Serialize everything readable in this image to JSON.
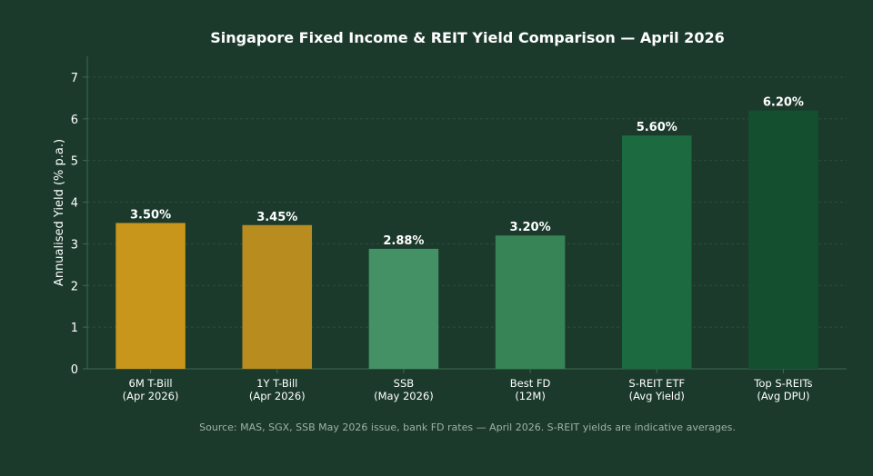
{
  "chart_data": {
    "type": "bar",
    "title": "Singapore Fixed Income & REIT Yield Comparison — April 2026",
    "xlabel": "",
    "ylabel": "Annualised Yield (% p.a.)",
    "ylim": [
      0,
      7.5
    ],
    "yticks": [
      "0",
      "1",
      "2",
      "3",
      "4",
      "5",
      "6",
      "7"
    ],
    "grid": true,
    "categories": [
      [
        "6M T-Bill",
        "(Apr 2026)"
      ],
      [
        "1Y T-Bill",
        "(Apr 2026)"
      ],
      [
        "SSB",
        "(May 2026)"
      ],
      [
        "Best FD",
        "(12M)"
      ],
      [
        "S-REIT ETF",
        "(Avg Yield)"
      ],
      [
        "Top S-REITs",
        "(Avg DPU)"
      ]
    ],
    "values": [
      3.5,
      3.45,
      2.88,
      3.2,
      5.6,
      6.2
    ],
    "data_labels": [
      "3.50%",
      "3.45%",
      "2.88%",
      "3.20%",
      "5.60%",
      "6.20%"
    ],
    "colors": [
      "#c8961a",
      "#b98c1f",
      "#449166",
      "#378556",
      "#1c6a40",
      "#144f30"
    ]
  },
  "source_note": "Source: MAS, SGX, SSB May 2026 issue, bank FD rates — April 2026. S-REIT yields are indicative averages.",
  "theme": {
    "background": "#1b3a2c",
    "grid_color": "#2a5038",
    "axis_color": "#3d6b50",
    "text_color": "#ffffff",
    "note_color": "#9fb1a6"
  }
}
